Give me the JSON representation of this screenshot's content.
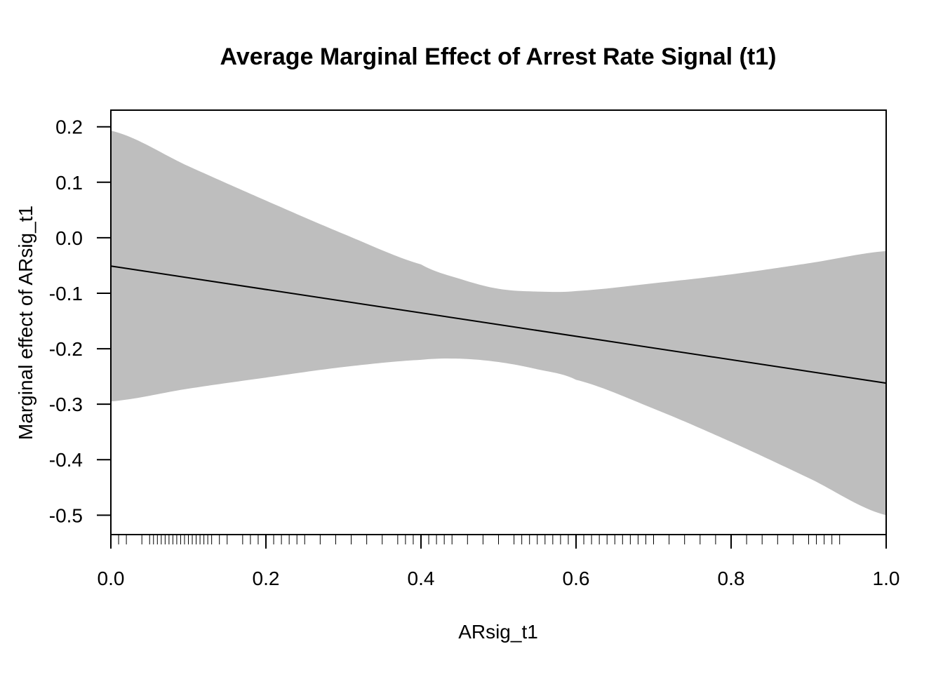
{
  "chart_data": {
    "type": "area",
    "title": "Average Marginal Effect of Arrest Rate Signal (t1)",
    "xlabel": "ARsig_t1",
    "ylabel": "Marginal effect of ARsig_t1",
    "xlim": [
      0.0,
      1.0
    ],
    "ylim": [
      -0.535,
      0.23
    ],
    "xticks": [
      0.0,
      0.2,
      0.4,
      0.6,
      0.8,
      1.0
    ],
    "xtick_labels": [
      "0.0",
      "0.2",
      "0.4",
      "0.6",
      "0.8",
      "1.0"
    ],
    "yticks": [
      0.2,
      0.1,
      0.0,
      -0.1,
      -0.2,
      -0.3,
      -0.4,
      -0.5
    ],
    "ytick_labels": [
      "0.2",
      "0.1",
      "0.0",
      "-0.1",
      "-0.2",
      "-0.3",
      "-0.4",
      "-0.5"
    ],
    "grid": false,
    "legend": "none",
    "colors": {
      "band": "#bebebe",
      "line": "#000000"
    },
    "effect_line": {
      "x": [
        0.0,
        1.0
      ],
      "y": [
        -0.051,
        -0.262
      ]
    },
    "ci_band": {
      "x": [
        0.0,
        0.1,
        0.2,
        0.3,
        0.4,
        0.45,
        0.5,
        0.55,
        0.6,
        0.7,
        0.8,
        0.9,
        1.0
      ],
      "upper": [
        0.193,
        0.129,
        0.067,
        0.007,
        -0.048,
        -0.074,
        -0.092,
        -0.097,
        -0.096,
        -0.082,
        -0.066,
        -0.046,
        -0.024
      ],
      "lower": [
        -0.295,
        -0.272,
        -0.252,
        -0.233,
        -0.22,
        -0.218,
        -0.224,
        -0.237,
        -0.256,
        -0.308,
        -0.368,
        -0.433,
        -0.5
      ]
    },
    "rug_x": [
      0.01,
      0.02,
      0.04,
      0.05,
      0.055,
      0.06,
      0.065,
      0.07,
      0.075,
      0.08,
      0.085,
      0.09,
      0.095,
      0.1,
      0.105,
      0.11,
      0.115,
      0.12,
      0.125,
      0.13,
      0.14,
      0.15,
      0.17,
      0.18,
      0.19,
      0.2,
      0.21,
      0.22,
      0.23,
      0.24,
      0.25,
      0.27,
      0.29,
      0.31,
      0.33,
      0.35,
      0.37,
      0.38,
      0.39,
      0.4,
      0.41,
      0.42,
      0.43,
      0.44,
      0.46,
      0.48,
      0.5,
      0.52,
      0.53,
      0.54,
      0.55,
      0.56,
      0.57,
      0.58,
      0.59,
      0.6,
      0.61,
      0.62,
      0.63,
      0.64,
      0.65,
      0.66,
      0.67,
      0.68,
      0.69,
      0.7,
      0.72,
      0.74,
      0.76,
      0.78,
      0.8,
      0.82,
      0.84,
      0.86,
      0.88,
      0.9,
      0.91,
      0.92,
      0.93,
      0.94
    ]
  }
}
